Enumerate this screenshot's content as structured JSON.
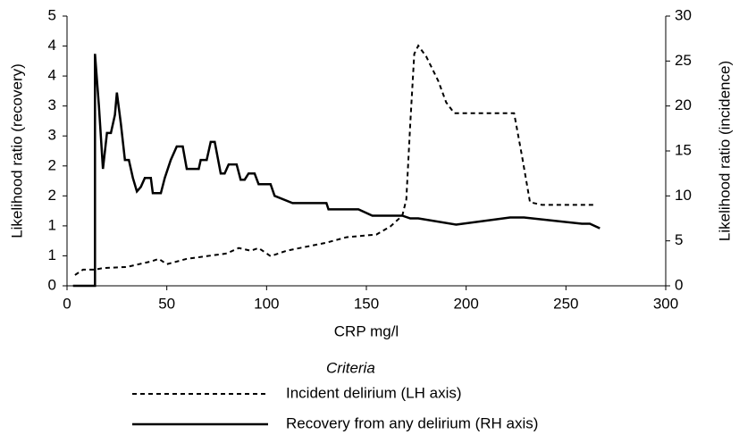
{
  "chart_data": {
    "type": "line",
    "x_label": "CRP mg/l",
    "y_label": "Likelihood ratio (recovery)",
    "y2_label": "Likelihood ratio (incidence)",
    "legend_title": "Criteria",
    "xlim": [
      0,
      300
    ],
    "xticks": [
      0,
      50,
      100,
      150,
      200,
      250,
      300
    ],
    "ylim": [
      0,
      5
    ],
    "yticks": [
      0,
      {
        "value": 0.556,
        "label": "1"
      },
      {
        "value": 1.111,
        "label": "1"
      },
      {
        "value": 1.667,
        "label": "2"
      },
      {
        "value": 2.222,
        "label": "2"
      },
      {
        "value": 2.778,
        "label": "3"
      },
      {
        "value": 3.333,
        "label": "3"
      },
      {
        "value": 3.889,
        "label": "4"
      },
      {
        "value": 4.444,
        "label": "4"
      },
      5
    ],
    "y2lim": [
      0,
      30
    ],
    "y2ticks": [
      0,
      5,
      10,
      15,
      20,
      25,
      30
    ],
    "grid": false,
    "series": [
      {
        "name": "Incident delirium (LH axis)",
        "color": "#000000",
        "style": "dashed",
        "axis": "y",
        "x": [
          4,
          8,
          14,
          18,
          30,
          36,
          42,
          46,
          50,
          60,
          70,
          80,
          86,
          92,
          96,
          102,
          110,
          130,
          140,
          155,
          162,
          168,
          170,
          172,
          174,
          176,
          180,
          186,
          190,
          194,
          224,
          228,
          232,
          238,
          265
        ],
        "values": [
          0.2,
          0.3,
          0.3,
          0.33,
          0.35,
          0.4,
          0.45,
          0.5,
          0.4,
          0.5,
          0.55,
          0.6,
          0.7,
          0.65,
          0.7,
          0.55,
          0.65,
          0.8,
          0.9,
          0.95,
          1.1,
          1.3,
          1.6,
          3.0,
          4.3,
          4.45,
          4.25,
          3.8,
          3.4,
          3.2,
          3.2,
          2.4,
          1.55,
          1.5,
          1.5
        ]
      },
      {
        "name": "Recovery from any delirium (RH axis)",
        "color": "#000000",
        "style": "solid",
        "axis": "y2",
        "x": [
          3,
          14,
          14,
          16,
          18,
          20,
          22,
          24,
          25,
          27,
          29,
          31,
          33,
          35,
          37,
          39,
          42,
          43,
          47,
          49,
          52,
          55,
          58,
          60,
          66,
          67,
          70,
          72,
          74,
          77,
          79,
          81,
          85,
          87,
          89,
          91,
          94,
          96,
          102,
          104,
          113,
          130,
          131,
          146,
          153,
          168,
          172,
          176,
          195,
          222,
          229,
          258,
          262,
          267
        ],
        "values": [
          0,
          0,
          25.8,
          20,
          13,
          17,
          17,
          19,
          21.5,
          18,
          14,
          14,
          12,
          10.5,
          11,
          12,
          12,
          10.3,
          10.3,
          12,
          14,
          15.5,
          15.5,
          13,
          13,
          14,
          14,
          16,
          16,
          12.5,
          12.5,
          13.5,
          13.5,
          11.8,
          11.8,
          12.5,
          12.5,
          11.3,
          11.3,
          10,
          9.2,
          9.2,
          8.5,
          8.5,
          7.8,
          7.8,
          7.5,
          7.5,
          6.8,
          7.6,
          7.6,
          6.9,
          6.9,
          6.4
        ]
      }
    ]
  }
}
